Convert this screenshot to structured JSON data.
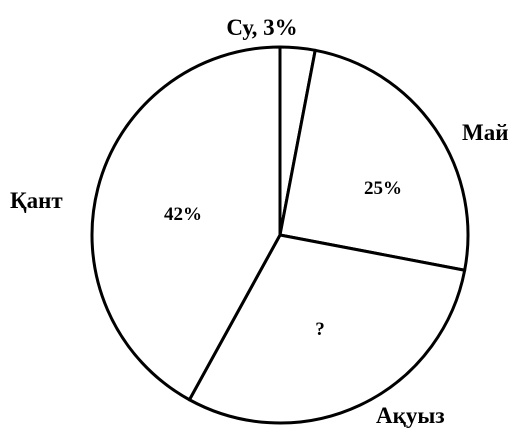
{
  "chart_data": {
    "type": "pie",
    "title": "",
    "slices": [
      {
        "name": "Су",
        "value": 3,
        "outer_label": "Су, 3%",
        "inner_label": ""
      },
      {
        "name": "Май",
        "value": 25,
        "outer_label": "Май",
        "inner_label": "25%"
      },
      {
        "name": "Ақуыз",
        "value": 30,
        "outer_label": "Ақуыз",
        "inner_label": "?"
      },
      {
        "name": "Қант",
        "value": 42,
        "outer_label": "Қант",
        "inner_label": "42%"
      }
    ],
    "fill_color": "#ffffff",
    "stroke_color": "#000000",
    "legend": "none",
    "start": "top, clockwise"
  }
}
